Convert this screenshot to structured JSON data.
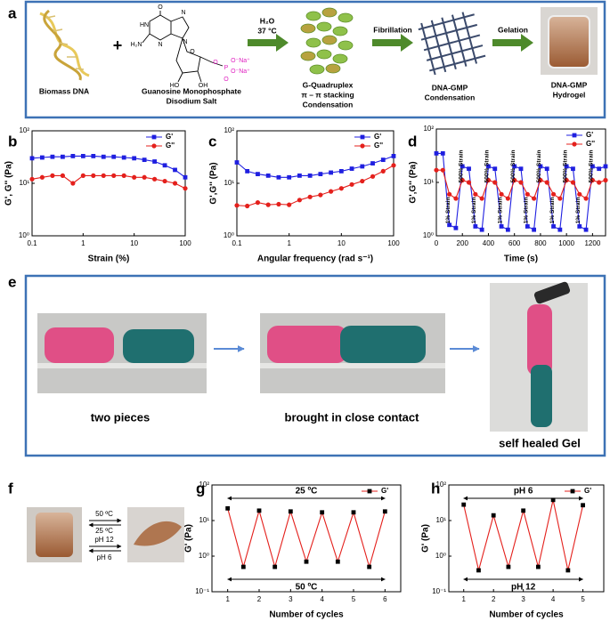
{
  "panel_labels": [
    "a",
    "b",
    "c",
    "d",
    "e",
    "f",
    "g",
    "h"
  ],
  "scheme": {
    "dna_label": "Biomass DNA",
    "plus": "+",
    "gmp_label": [
      "Guanosine Monophosphate",
      "Disodium Salt"
    ],
    "atoms": [
      "O",
      "N",
      "HN",
      "H₂N",
      "N",
      "N",
      "O",
      "HO",
      "OH",
      "O",
      "P",
      "O⁻Na⁺",
      "O⁻Na⁺",
      "O"
    ],
    "step1": [
      "H₂O",
      "37 °C"
    ],
    "quadruplex_label": [
      "G-Quadruplex",
      "π – π stacking",
      "Condensation"
    ],
    "step2": "Fibrillation",
    "condensate_label": [
      "DNA-GMP",
      "Condensation"
    ],
    "step3": "Gelation",
    "hydrogel_label": [
      "DNA-GMP",
      "Hydrogel"
    ]
  },
  "self_healing": {
    "captions": [
      "two pieces",
      "brought in close contact",
      "self healed Gel"
    ]
  },
  "switching": {
    "conditions": [
      "50 ºC",
      "25 ºC",
      "pH 12",
      "pH 6"
    ]
  },
  "chart_data": [
    {
      "type": "line",
      "xlabel": "Strain (%)",
      "ylabel": "G', G'' (Pa)",
      "xscale": "log",
      "yscale": "log",
      "x": [
        0.1,
        0.158,
        0.251,
        0.398,
        0.631,
        1,
        1.585,
        2.512,
        3.981,
        6.31,
        10,
        15.85,
        25.12,
        39.81,
        63.1,
        100
      ],
      "series": [
        {
          "name": "G'",
          "color": "#1f1fe0",
          "marker": "square",
          "values": [
            30,
            31,
            32,
            32,
            33,
            33,
            33,
            32,
            32,
            31,
            30,
            28,
            26,
            22,
            18,
            13
          ]
        },
        {
          "name": "G''",
          "color": "#e4201c",
          "marker": "circle",
          "values": [
            12,
            13,
            14,
            14,
            10,
            14,
            14,
            14,
            14,
            14,
            13,
            13,
            12,
            11,
            10,
            8
          ]
        }
      ],
      "xlim": [
        0.1,
        100
      ],
      "ylim": [
        1,
        100
      ],
      "xticks": [
        0.1,
        1,
        10,
        100
      ],
      "yticks": [
        {
          "value": 1,
          "label": "10⁰"
        },
        {
          "value": 10,
          "label": "10¹"
        },
        {
          "value": 100,
          "label": "10²"
        }
      ],
      "legend": "upper right",
      "annotations": []
    },
    {
      "type": "line",
      "xlabel": "Angular frequency (rad s⁻¹)",
      "ylabel": "G',G'' (Pa)",
      "xscale": "log",
      "yscale": "log",
      "x": [
        0.1,
        0.158,
        0.251,
        0.398,
        0.631,
        1,
        1.585,
        2.512,
        3.981,
        6.31,
        10,
        15.85,
        25.12,
        39.81,
        63.1,
        100
      ],
      "series": [
        {
          "name": "G'",
          "color": "#1f1fe0",
          "marker": "square",
          "values": [
            25,
            17,
            15,
            14,
            13,
            13,
            14,
            14,
            15,
            16,
            17,
            19,
            21,
            24,
            28,
            33
          ]
        },
        {
          "name": "G''",
          "color": "#e4201c",
          "marker": "circle",
          "values": [
            3.8,
            3.7,
            4.3,
            3.9,
            4,
            3.9,
            4.8,
            5.5,
            6,
            7,
            8,
            9.5,
            11,
            13.5,
            17,
            22
          ]
        }
      ],
      "xlim": [
        0.1,
        100
      ],
      "ylim": [
        1,
        100
      ],
      "xticks": [
        0.1,
        1,
        10,
        100
      ],
      "yticks": [
        {
          "value": 1,
          "label": "10⁰"
        },
        {
          "value": 10,
          "label": "10¹"
        },
        {
          "value": 100,
          "label": "10²"
        }
      ],
      "legend": "upper right",
      "annotations": []
    },
    {
      "type": "line",
      "xlabel": "Time (s)",
      "ylabel": "G',G'' (Pa)",
      "xscale": "linear",
      "yscale": "log",
      "x": [
        0,
        50,
        100,
        150,
        200,
        250,
        300,
        350,
        400,
        450,
        500,
        550,
        600,
        650,
        700,
        750,
        800,
        850,
        900,
        950,
        1000,
        1050,
        1100,
        1150,
        1200,
        1250,
        1300
      ],
      "series": [
        {
          "name": "G'",
          "color": "#1f1fe0",
          "marker": "square",
          "values": [
            35,
            35,
            1.6,
            1.4,
            20,
            18,
            1.5,
            1.3,
            20,
            18,
            1.5,
            1.3,
            20,
            18,
            1.5,
            1.3,
            20,
            18,
            1.5,
            1.3,
            20,
            18,
            1.5,
            1.3,
            20,
            18,
            20
          ]
        },
        {
          "name": "G''",
          "color": "#e4201c",
          "marker": "circle",
          "values": [
            17,
            17,
            6,
            5,
            11,
            10,
            6,
            5,
            11,
            10,
            6,
            5,
            11,
            10,
            6,
            5,
            11,
            10,
            6,
            5,
            11,
            10,
            6,
            5,
            11,
            10,
            11
          ]
        }
      ],
      "xlim": [
        0,
        1300
      ],
      "ylim": [
        1,
        100
      ],
      "xticks": [
        0,
        200,
        400,
        600,
        800,
        1000,
        1200
      ],
      "yticks": [
        {
          "value": 1,
          "label": "10⁰"
        },
        {
          "value": 10,
          "label": "10¹"
        },
        {
          "value": 100,
          "label": "10²"
        }
      ],
      "legend": "upper right",
      "annotations": [
        "1% Strain",
        "500% Strain",
        "1% Strain",
        "500% Strain",
        "1% Strain",
        "500% Strain",
        "1% Strain",
        "500% Strain",
        "1% Strain",
        "500% Strain",
        "1% Strain",
        "500% Strain"
      ]
    },
    {
      "type": "line",
      "xlabel": "Number of cycles",
      "ylabel": "G' (Pa)",
      "xscale": "linear",
      "yscale": "log",
      "x": [
        1,
        1.5,
        2,
        2.5,
        3,
        3.5,
        4,
        4.5,
        5,
        5.5,
        6
      ],
      "series": [
        {
          "name": "G'",
          "color": "#e4201c",
          "marker": "square",
          "marker_color": "#000000",
          "values": [
            22,
            0.5,
            19,
            0.5,
            18,
            0.7,
            17,
            0.7,
            17,
            0.5,
            18
          ]
        }
      ],
      "xlim": [
        0.5,
        6.5
      ],
      "ylim": [
        0.1,
        100
      ],
      "xticks": [
        1,
        2,
        3,
        4,
        5,
        6
      ],
      "yticks": [
        {
          "value": 0.1,
          "label": "10⁻¹"
        },
        {
          "value": 1,
          "label": "10⁰"
        },
        {
          "value": 10,
          "label": "10¹"
        },
        {
          "value": 100,
          "label": "10²"
        }
      ],
      "legend": "upper right",
      "annotations": [
        "25 ºC",
        "50 ºC"
      ]
    },
    {
      "type": "line",
      "xlabel": "Number of cycles",
      "ylabel": "G' (Pa)",
      "xscale": "linear",
      "yscale": "log",
      "x": [
        1,
        1.5,
        2,
        2.5,
        3,
        3.5,
        4,
        4.5,
        5
      ],
      "series": [
        {
          "name": "G'",
          "color": "#e4201c",
          "marker": "square",
          "marker_color": "#000000",
          "values": [
            28,
            0.4,
            14,
            0.5,
            19,
            0.5,
            38,
            0.4,
            27
          ]
        }
      ],
      "xlim": [
        0.5,
        5.7
      ],
      "ylim": [
        0.1,
        100
      ],
      "xticks": [
        1,
        2,
        3,
        4,
        5
      ],
      "yticks": [
        {
          "value": 0.1,
          "label": "10⁻¹"
        },
        {
          "value": 1,
          "label": "10⁰"
        },
        {
          "value": 10,
          "label": "10¹"
        },
        {
          "value": 100,
          "label": "10²"
        }
      ],
      "legend": "upper right",
      "annotations": [
        "pH 6",
        "pH 12"
      ]
    }
  ]
}
